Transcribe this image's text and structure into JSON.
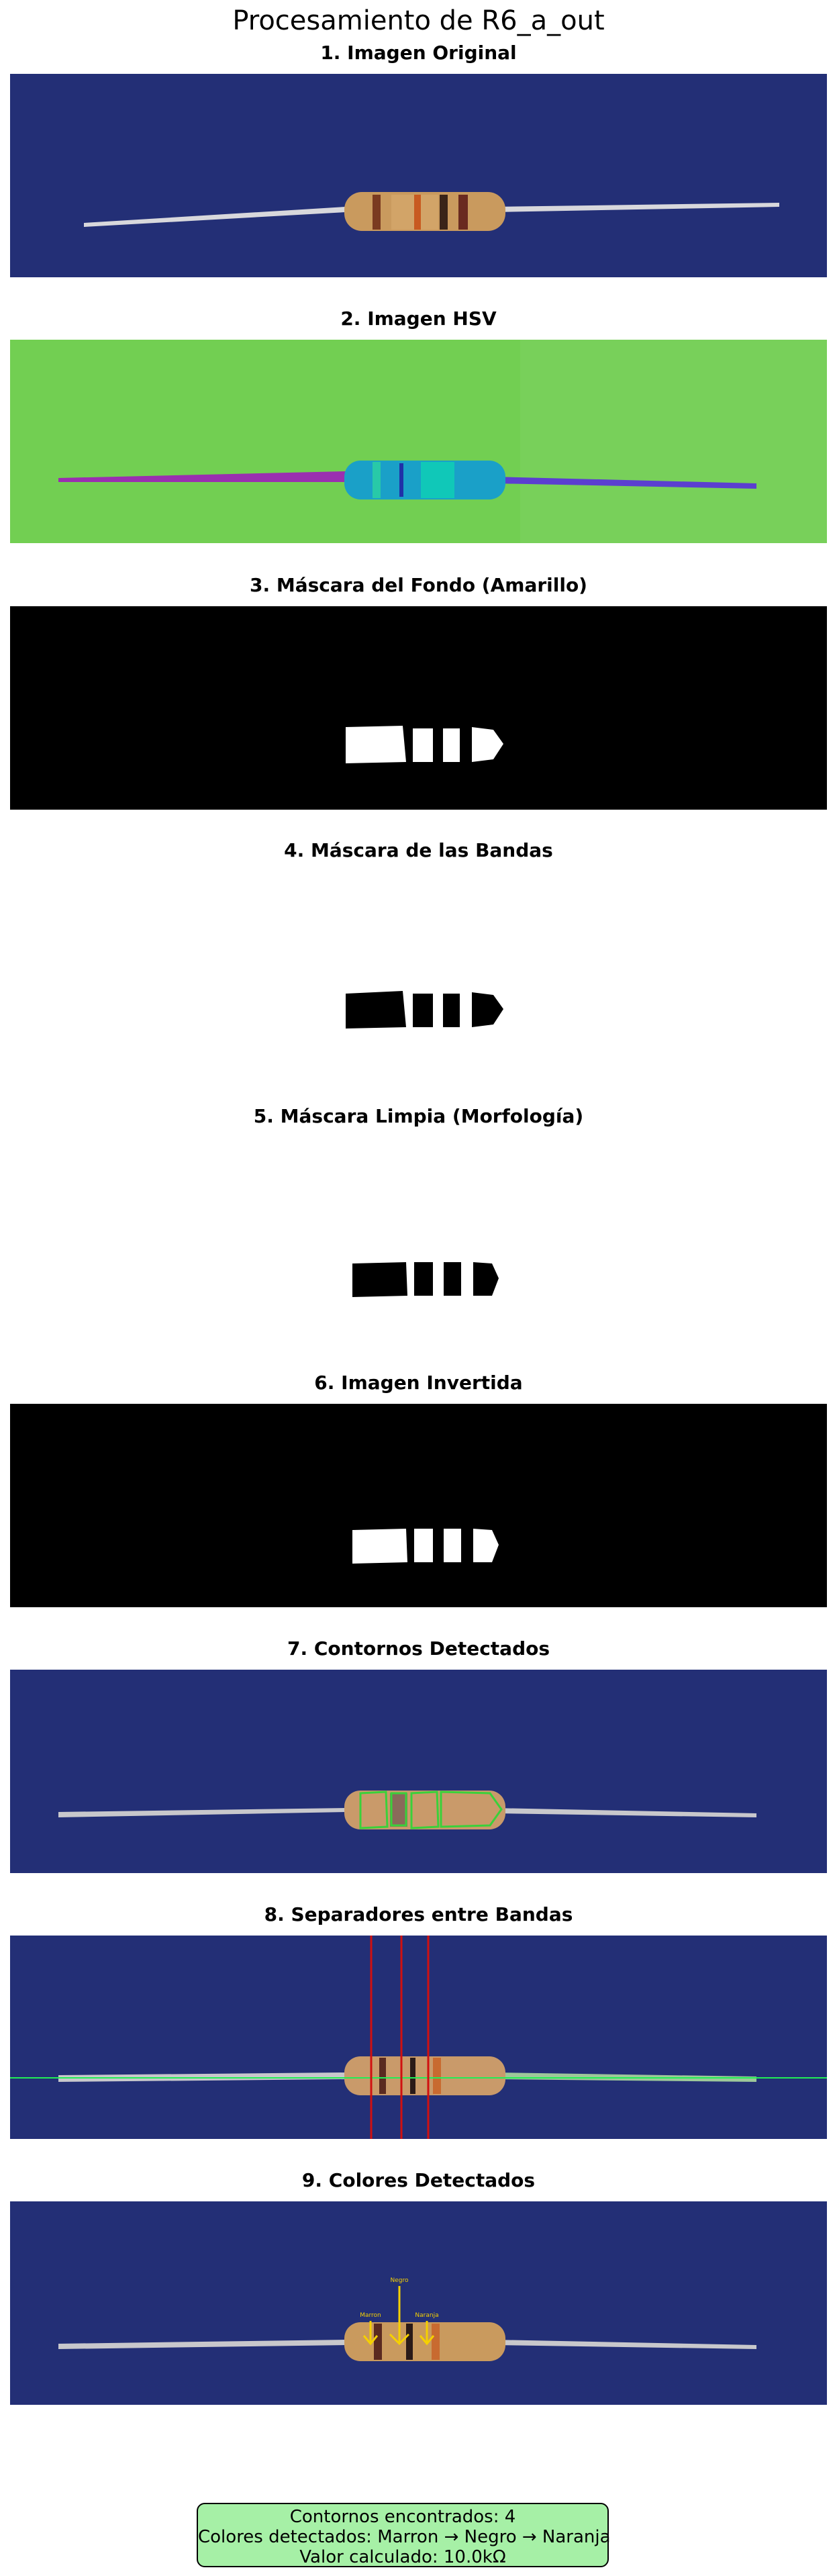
{
  "figure_title": "Procesamiento de R6_a_out",
  "panels": [
    {
      "title": "1. Imagen Original",
      "image": "original-photo"
    },
    {
      "title": "2. Imagen HSV",
      "image": "hsv-image"
    },
    {
      "title": "3. Máscara del Fondo (Amarillo)",
      "image": "background-mask"
    },
    {
      "title": "4. Máscara de las Bandas",
      "image": "bands-mask"
    },
    {
      "title": "5. Máscara Limpia (Morfología)",
      "image": "clean-mask"
    },
    {
      "title": "6. Imagen Invertida",
      "image": "inverted-image"
    },
    {
      "title": "7. Contornos Detectados",
      "image": "contours-image"
    },
    {
      "title": "8. Separadores entre Bandas",
      "image": "separators-image"
    },
    {
      "title": "9. Colores Detectados",
      "image": "detected-colors-image"
    }
  ],
  "band_labels": [
    "Marron",
    "Negro",
    "Naranja"
  ],
  "summary": {
    "contours": "Contornos encontrados: 4",
    "colors": "Colores detectados: Marron → Negro → Naranja",
    "value": "Valor calculado: 10.0kΩ"
  },
  "colors": {
    "photo_background": "#1f2a6e",
    "hsv_background": "#72cf52",
    "mask_background": "#000000",
    "mask_foreground": "#ffffff",
    "contour_line": "#3ad13a",
    "separator_line": "#d01010",
    "center_line": "#22ee55",
    "arrow_color": "#f5d000",
    "summary_background": "#a6f0a6"
  }
}
